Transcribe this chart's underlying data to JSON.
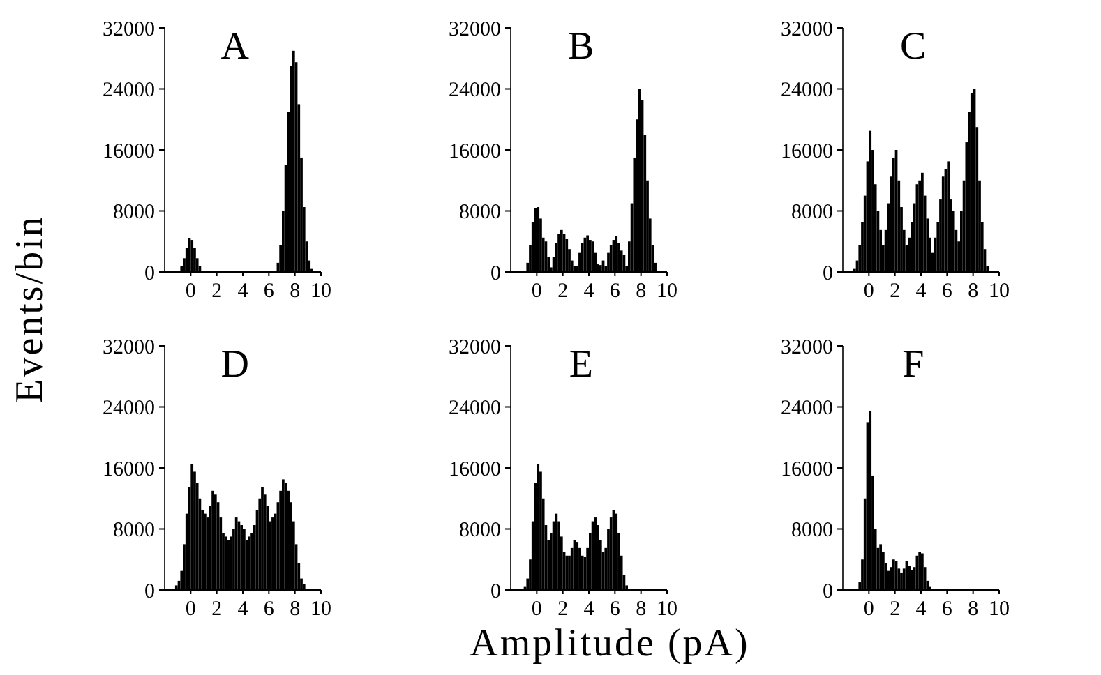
{
  "chart_data": [
    {
      "type": "histogram",
      "title": "A",
      "ylabel": "Events/bin",
      "color": "#000000",
      "xlim": [
        -2,
        10
      ],
      "xticks": [
        0,
        2,
        4,
        6,
        8,
        10
      ],
      "ylim": [
        0,
        32000
      ],
      "yticks": [
        0,
        8000,
        16000,
        24000,
        32000
      ],
      "bins": [
        -0.8,
        -0.6,
        -0.4,
        -0.2,
        0,
        0.2,
        0.4,
        0.6,
        0.8,
        6.6,
        6.8,
        7.0,
        7.2,
        7.4,
        7.6,
        7.8,
        8.0,
        8.2,
        8.4,
        8.6,
        8.8,
        9.0,
        9.2,
        9.4
      ],
      "values": [
        800,
        1800,
        3200,
        4400,
        4200,
        3200,
        1800,
        800,
        0,
        1200,
        3500,
        8000,
        14000,
        21000,
        27000,
        29000,
        27500,
        22000,
        15000,
        8500,
        4000,
        1500,
        400
      ]
    },
    {
      "type": "histogram",
      "title": "B",
      "color": "#000000",
      "xlim": [
        -2,
        10
      ],
      "xticks": [
        0,
        2,
        4,
        6,
        8,
        10
      ],
      "ylim": [
        0,
        32000
      ],
      "yticks": [
        0,
        8000,
        16000,
        24000,
        32000
      ],
      "bins": [
        -0.8,
        -0.6,
        -0.4,
        -0.2,
        0,
        0.2,
        0.4,
        0.6,
        0.8,
        1.0,
        1.2,
        1.4,
        1.6,
        1.8,
        2.0,
        2.2,
        2.4,
        2.6,
        2.8,
        3.0,
        3.2,
        3.4,
        3.6,
        3.8,
        4.0,
        4.2,
        4.4,
        4.6,
        4.8,
        5.0,
        5.2,
        5.4,
        5.6,
        5.8,
        6.0,
        6.2,
        6.4,
        6.6,
        6.8,
        7.0,
        7.2,
        7.4,
        7.6,
        7.8,
        8.0,
        8.2,
        8.4,
        8.6,
        8.8,
        9.0,
        9.2
      ],
      "values": [
        1200,
        3500,
        6500,
        8400,
        8500,
        7000,
        4500,
        4000,
        2000,
        600,
        2000,
        3800,
        5000,
        5500,
        5000,
        4300,
        3000,
        1500,
        800,
        800,
        2500,
        3800,
        4500,
        4800,
        4200,
        4000,
        2500,
        1000,
        900,
        1500,
        800,
        2500,
        3500,
        4200,
        4700,
        3800,
        2800,
        2200,
        800,
        4000,
        9000,
        15000,
        20000,
        24000,
        22500,
        18000,
        12000,
        7000,
        3500,
        1200
      ]
    },
    {
      "type": "histogram",
      "title": "C",
      "color": "#000000",
      "xlim": [
        -2,
        10
      ],
      "xticks": [
        0,
        2,
        4,
        6,
        8,
        10
      ],
      "ylim": [
        0,
        32000
      ],
      "yticks": [
        0,
        8000,
        16000,
        24000,
        32000
      ],
      "bins": [
        -1.2,
        -1.0,
        -0.8,
        -0.6,
        -0.4,
        -0.2,
        0,
        0.2,
        0.4,
        0.6,
        0.8,
        1.0,
        1.2,
        1.4,
        1.6,
        1.8,
        2.0,
        2.2,
        2.4,
        2.6,
        2.8,
        3.0,
        3.2,
        3.4,
        3.6,
        3.8,
        4.0,
        4.2,
        4.4,
        4.6,
        4.8,
        5.0,
        5.2,
        5.4,
        5.6,
        5.8,
        6.0,
        6.2,
        6.4,
        6.6,
        6.8,
        7.0,
        7.2,
        7.4,
        7.6,
        7.8,
        8.0,
        8.2,
        8.4,
        8.6,
        8.8,
        9.0,
        9.2
      ],
      "values": [
        400,
        1500,
        3500,
        6500,
        10000,
        14500,
        18500,
        16000,
        11500,
        8000,
        5500,
        3500,
        5500,
        9000,
        12500,
        15000,
        16000,
        12000,
        8500,
        5500,
        3500,
        4500,
        6500,
        9000,
        11500,
        12000,
        13000,
        10000,
        7000,
        4500,
        2500,
        4500,
        6500,
        9500,
        12500,
        13500,
        14500,
        9500,
        8000,
        5500,
        4000,
        8000,
        12000,
        17000,
        21000,
        23500,
        24000,
        19000,
        12000,
        6500,
        3000,
        800
      ]
    },
    {
      "type": "histogram",
      "title": "D",
      "color": "#000000",
      "xlim": [
        -2,
        10
      ],
      "xticks": [
        0,
        2,
        4,
        6,
        8,
        10
      ],
      "ylim": [
        0,
        32000
      ],
      "yticks": [
        0,
        8000,
        16000,
        24000,
        32000
      ],
      "bins": [
        -1.2,
        -1.0,
        -0.8,
        -0.6,
        -0.4,
        -0.2,
        0,
        0.2,
        0.4,
        0.6,
        0.8,
        1.0,
        1.2,
        1.4,
        1.6,
        1.8,
        2.0,
        2.2,
        2.4,
        2.6,
        2.8,
        3.0,
        3.2,
        3.4,
        3.6,
        3.8,
        4.0,
        4.2,
        4.4,
        4.6,
        4.8,
        5.0,
        5.2,
        5.4,
        5.6,
        5.8,
        6.0,
        6.2,
        6.4,
        6.6,
        6.8,
        7.0,
        7.2,
        7.4,
        7.6,
        7.8,
        8.0,
        8.2,
        8.4,
        8.6,
        8.8
      ],
      "values": [
        600,
        1200,
        2500,
        6000,
        10000,
        13500,
        16500,
        15500,
        14000,
        12000,
        10500,
        10000,
        9500,
        11000,
        13000,
        12500,
        11500,
        9500,
        7500,
        7000,
        6500,
        7000,
        8000,
        9500,
        9000,
        8500,
        8000,
        6500,
        7000,
        7500,
        8500,
        10500,
        12000,
        13500,
        12500,
        11000,
        9000,
        9500,
        10000,
        11500,
        13000,
        14500,
        14000,
        13000,
        11500,
        9000,
        6000,
        3500,
        1500,
        800
      ]
    },
    {
      "type": "histogram",
      "title": "E",
      "xlabel": "Amplitude (pA)",
      "color": "#000000",
      "xlim": [
        -2,
        10
      ],
      "xticks": [
        0,
        2,
        4,
        6,
        8,
        10
      ],
      "ylim": [
        0,
        32000
      ],
      "yticks": [
        0,
        8000,
        16000,
        24000,
        32000
      ],
      "bins": [
        -1.0,
        -0.8,
        -0.6,
        -0.4,
        -0.2,
        0,
        0.2,
        0.4,
        0.6,
        0.8,
        1.0,
        1.2,
        1.4,
        1.6,
        1.8,
        2.0,
        2.2,
        2.4,
        2.6,
        2.8,
        3.0,
        3.2,
        3.4,
        3.6,
        3.8,
        4.0,
        4.2,
        4.4,
        4.6,
        4.8,
        5.0,
        5.2,
        5.4,
        5.6,
        5.8,
        6.0,
        6.2,
        6.4,
        6.6,
        6.8,
        7.0
      ],
      "values": [
        400,
        1500,
        4000,
        9000,
        14000,
        16500,
        15500,
        12000,
        8500,
        6500,
        7500,
        9000,
        10000,
        9000,
        7000,
        5000,
        4500,
        4500,
        5500,
        6500,
        6300,
        5500,
        4500,
        4300,
        5500,
        7500,
        9000,
        9500,
        8500,
        6500,
        5000,
        5500,
        8000,
        9500,
        10500,
        10000,
        7500,
        4500,
        2000,
        600
      ]
    },
    {
      "type": "histogram",
      "title": "F",
      "color": "#000000",
      "xlim": [
        -2,
        10
      ],
      "xticks": [
        0,
        2,
        4,
        6,
        8,
        10
      ],
      "ylim": [
        0,
        32000
      ],
      "yticks": [
        0,
        8000,
        16000,
        24000,
        32000
      ],
      "bins": [
        -0.8,
        -0.6,
        -0.4,
        -0.2,
        0,
        0.2,
        0.4,
        0.6,
        0.8,
        1.0,
        1.2,
        1.4,
        1.6,
        1.8,
        2.0,
        2.2,
        2.4,
        2.6,
        2.8,
        3.0,
        3.2,
        3.4,
        3.6,
        3.8,
        4.0,
        4.2,
        4.4,
        4.6,
        4.8
      ],
      "values": [
        1000,
        4000,
        12000,
        22000,
        23500,
        15000,
        8000,
        5500,
        6000,
        5000,
        3500,
        2500,
        3000,
        4000,
        3800,
        2800,
        2200,
        2800,
        3800,
        3200,
        2600,
        3000,
        4500,
        5000,
        4800,
        3000,
        1200,
        400
      ]
    }
  ]
}
